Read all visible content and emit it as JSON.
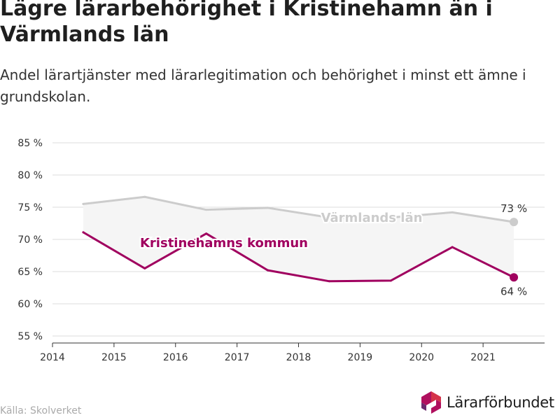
{
  "header": {
    "title": "Lägre lärarbehörighet i Kristinehamn än i Värmlands län",
    "subtitle": "Andel lärartjänster med lärarlegitimation och behörighet i minst ett ämne i grundskolan."
  },
  "footer": {
    "source": "Källa: Skolverket",
    "logo_text": "Lärarförbundet"
  },
  "chart_data": {
    "type": "line",
    "title": "Lägre lärarbehörighet i Kristinehamn än i Värmlands län",
    "subtitle": "Andel lärartjänster med lärarlegitimation och behörighet i minst ett ämne i grundskolan.",
    "x": [
      2014.5,
      2015.5,
      2016.5,
      2017.5,
      2018.5,
      2019.5,
      2020.5,
      2021.5
    ],
    "x_ticks": [
      "2014",
      "2015",
      "2016",
      "2017",
      "2018",
      "2019",
      "2020",
      "2021"
    ],
    "xlim": [
      2014,
      2022
    ],
    "ylim": [
      55,
      85
    ],
    "y_ticks": [
      "55 %",
      "60 %",
      "65 %",
      "70 %",
      "75 %",
      "80 %",
      "85 %"
    ],
    "y_unit": "%",
    "grid": true,
    "series": [
      {
        "name": "Värmlands län",
        "color": "#cccccc",
        "values": [
          75.5,
          76.6,
          74.6,
          74.9,
          73.4,
          73.4,
          74.2,
          72.7
        ],
        "end_label": "73 %"
      },
      {
        "name": "Kristinehamns kommun",
        "color": "#a0005f",
        "values": [
          71.1,
          65.5,
          70.9,
          65.2,
          63.5,
          63.6,
          68.8,
          64.1
        ],
        "end_label": "64 %"
      }
    ]
  },
  "colors": {
    "band_fill": "#f5f5f5",
    "grid": "#dddddd",
    "axis": "#333333",
    "logo_magenta": "#b0105e",
    "logo_red": "#d4334a",
    "logo_purple": "#6b2b6e"
  }
}
